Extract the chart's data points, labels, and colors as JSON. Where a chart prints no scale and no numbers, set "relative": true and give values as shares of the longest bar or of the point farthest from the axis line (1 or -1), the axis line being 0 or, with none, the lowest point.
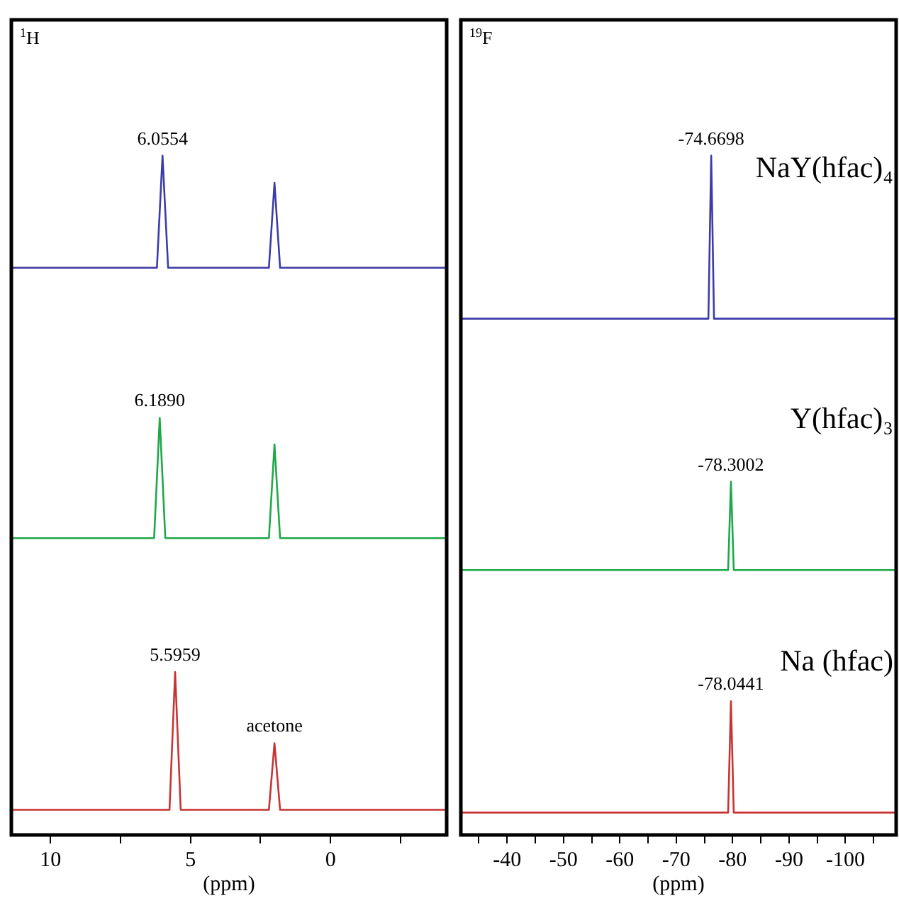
{
  "chart_data": [
    {
      "type": "line",
      "relative": true,
      "xlabel": "(ppm)",
      "xlim": [
        11.4,
        -4.15
      ],
      "xticks": [
        10,
        {
          "value": 7.5,
          "label": null
        },
        5,
        {
          "value": 2.5,
          "label": null
        },
        0,
        {
          "value": -2.5,
          "label": null
        }
      ],
      "grid": false,
      "legend": false,
      "marker": "none",
      "line_style": "solid",
      "annotations": [
        "$^{1}$H",
        {
          "text": "6.0554",
          "x": 6.0,
          "y": 1
        },
        {
          "text": "6.1890",
          "x": 6.1,
          "y": 0.614
        },
        {
          "text": "5.5959",
          "x": 5.55,
          "y": 0.24
        },
        {
          "text": "acetone",
          "x": 2.0,
          "y": 0.135
        }
      ],
      "series": [
        {
          "color": "#3c3ca8",
          "x": [
            11.4,
            6.2,
            6.0,
            5.8,
            2.2,
            2.0,
            1.8,
            -4.15
          ],
          "values": [
            0.835,
            0.835,
            1,
            0.835,
            0.835,
            0.96,
            0.835,
            0.835
          ]
        },
        {
          "color": "#1fa84a",
          "x": [
            11.4,
            6.3,
            6.1,
            5.9,
            2.2,
            2.0,
            1.8,
            -4.15
          ],
          "values": [
            0.437,
            0.437,
            0.614,
            0.437,
            0.437,
            0.575,
            0.437,
            0.437
          ]
        },
        {
          "color": "#c83434",
          "x": [
            11.4,
            5.75,
            5.55,
            5.35,
            2.2,
            2.0,
            1.8,
            -4.15
          ],
          "values": [
            0.037,
            0.037,
            0.24,
            0.037,
            0.037,
            0.135,
            0.037,
            0.037
          ]
        }
      ]
    },
    {
      "type": "line",
      "relative": true,
      "xlabel": "(ppm)",
      "xlim": [
        -31.8,
        -109
      ],
      "xticks": [
        {
          "value": -35,
          "label": null
        },
        -40,
        {
          "value": -45,
          "label": null
        },
        -50,
        {
          "value": -55,
          "label": null
        },
        -60,
        {
          "value": -65,
          "label": null
        },
        -70,
        {
          "value": -75,
          "label": null
        },
        -80,
        {
          "value": -85,
          "label": null
        },
        -90,
        {
          "value": -95,
          "label": null
        },
        -100,
        {
          "value": -105,
          "label": null
        }
      ],
      "grid": false,
      "legend": false,
      "marker": "none",
      "line_style": "solid",
      "annotations": [
        "$^{19}$F",
        {
          "text": "-74.6698",
          "x": -76.2,
          "y": 1
        },
        {
          "text": "-78.3002",
          "x": -79.7,
          "y": 0.52
        },
        {
          "text": "-78.0441",
          "x": -79.7,
          "y": 0.197
        }
      ],
      "series": [
        {
          "name": "NaY(hfac)₄",
          "color": "#3c3ca8",
          "x": [
            -31.8,
            -75.7,
            -76.2,
            -76.7,
            -109
          ],
          "values": [
            0.76,
            0.76,
            1,
            0.76,
            0.76
          ]
        },
        {
          "name": "Y(hfac)₃",
          "color": "#1fa84a",
          "x": [
            -31.8,
            -79.2,
            -79.7,
            -80.2,
            -109
          ],
          "values": [
            0.39,
            0.39,
            0.52,
            0.39,
            0.39
          ]
        },
        {
          "name": "Na (hfac)",
          "color": "#c83434",
          "x": [
            -31.8,
            -79.2,
            -79.7,
            -80.2,
            -109
          ],
          "values": [
            0.033,
            0.033,
            0.197,
            0.033,
            0.033
          ]
        }
      ]
    }
  ]
}
